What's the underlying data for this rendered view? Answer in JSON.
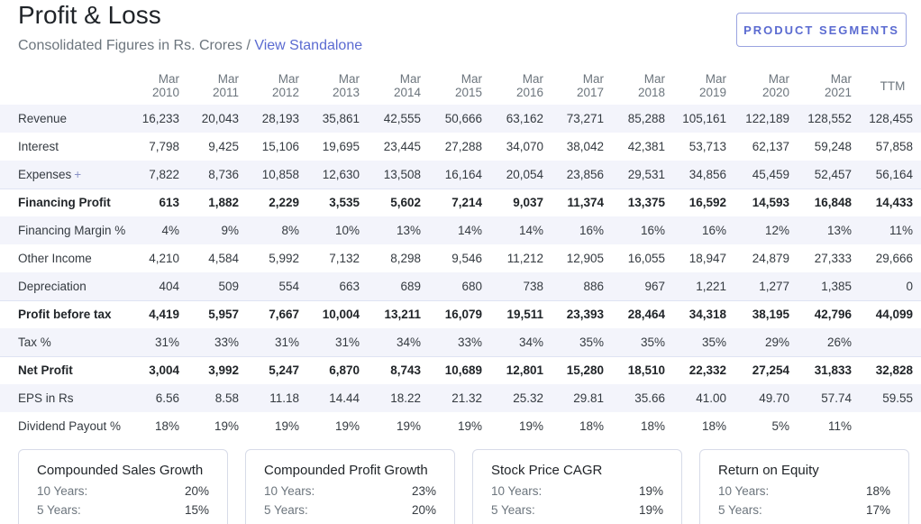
{
  "header": {
    "title": "Profit & Loss",
    "subtitle_prefix": "Consolidated Figures in Rs. Crores / ",
    "subtitle_link": "View Standalone",
    "segments_button": "PRODUCT SEGMENTS"
  },
  "table": {
    "columns": [
      {
        "line1": "Mar",
        "line2": "2010"
      },
      {
        "line1": "Mar",
        "line2": "2011"
      },
      {
        "line1": "Mar",
        "line2": "2012"
      },
      {
        "line1": "Mar",
        "line2": "2013"
      },
      {
        "line1": "Mar",
        "line2": "2014"
      },
      {
        "line1": "Mar",
        "line2": "2015"
      },
      {
        "line1": "Mar",
        "line2": "2016"
      },
      {
        "line1": "Mar",
        "line2": "2017"
      },
      {
        "line1": "Mar",
        "line2": "2018"
      },
      {
        "line1": "Mar",
        "line2": "2019"
      },
      {
        "line1": "Mar",
        "line2": "2020"
      },
      {
        "line1": "Mar",
        "line2": "2021"
      },
      {
        "line1": "TTM",
        "line2": ""
      }
    ],
    "rows": [
      {
        "label": "Revenue",
        "expandable": false,
        "bold": false,
        "values": [
          "16,233",
          "20,043",
          "28,193",
          "35,861",
          "42,555",
          "50,666",
          "63,162",
          "73,271",
          "85,288",
          "105,161",
          "122,189",
          "128,552",
          "128,455"
        ]
      },
      {
        "label": "Interest",
        "expandable": false,
        "bold": false,
        "values": [
          "7,798",
          "9,425",
          "15,106",
          "19,695",
          "23,445",
          "27,288",
          "34,070",
          "38,042",
          "42,381",
          "53,713",
          "62,137",
          "59,248",
          "57,858"
        ]
      },
      {
        "label": "Expenses",
        "expandable": true,
        "bold": false,
        "values": [
          "7,822",
          "8,736",
          "10,858",
          "12,630",
          "13,508",
          "16,164",
          "20,054",
          "23,856",
          "29,531",
          "34,856",
          "45,459",
          "52,457",
          "56,164"
        ]
      },
      {
        "label": "Financing Profit",
        "expandable": false,
        "bold": true,
        "values": [
          "613",
          "1,882",
          "2,229",
          "3,535",
          "5,602",
          "7,214",
          "9,037",
          "11,374",
          "13,375",
          "16,592",
          "14,593",
          "16,848",
          "14,433"
        ]
      },
      {
        "label": "Financing Margin %",
        "expandable": false,
        "bold": false,
        "values": [
          "4%",
          "9%",
          "8%",
          "10%",
          "13%",
          "14%",
          "14%",
          "16%",
          "16%",
          "16%",
          "12%",
          "13%",
          "11%"
        ]
      },
      {
        "label": "Other Income",
        "expandable": false,
        "bold": false,
        "values": [
          "4,210",
          "4,584",
          "5,992",
          "7,132",
          "8,298",
          "9,546",
          "11,212",
          "12,905",
          "16,055",
          "18,947",
          "24,879",
          "27,333",
          "29,666"
        ]
      },
      {
        "label": "Depreciation",
        "expandable": false,
        "bold": false,
        "values": [
          "404",
          "509",
          "554",
          "663",
          "689",
          "680",
          "738",
          "886",
          "967",
          "1,221",
          "1,277",
          "1,385",
          "0"
        ]
      },
      {
        "label": "Profit before tax",
        "expandable": false,
        "bold": true,
        "values": [
          "4,419",
          "5,957",
          "7,667",
          "10,004",
          "13,211",
          "16,079",
          "19,511",
          "23,393",
          "28,464",
          "34,318",
          "38,195",
          "42,796",
          "44,099"
        ]
      },
      {
        "label": "Tax %",
        "expandable": false,
        "bold": false,
        "values": [
          "31%",
          "33%",
          "31%",
          "31%",
          "34%",
          "33%",
          "34%",
          "35%",
          "35%",
          "35%",
          "29%",
          "26%",
          ""
        ]
      },
      {
        "label": "Net Profit",
        "expandable": false,
        "bold": true,
        "values": [
          "3,004",
          "3,992",
          "5,247",
          "6,870",
          "8,743",
          "10,689",
          "12,801",
          "15,280",
          "18,510",
          "22,332",
          "27,254",
          "31,833",
          "32,828"
        ]
      },
      {
        "label": "EPS in Rs",
        "expandable": false,
        "bold": false,
        "values": [
          "6.56",
          "8.58",
          "11.18",
          "14.44",
          "18.22",
          "21.32",
          "25.32",
          "29.81",
          "35.66",
          "41.00",
          "49.70",
          "57.74",
          "59.55"
        ]
      },
      {
        "label": "Dividend Payout %",
        "expandable": false,
        "bold": false,
        "values": [
          "18%",
          "19%",
          "19%",
          "19%",
          "19%",
          "19%",
          "19%",
          "18%",
          "18%",
          "18%",
          "5%",
          "11%",
          ""
        ]
      }
    ]
  },
  "cards": [
    {
      "title": "Compounded Sales Growth",
      "rows": [
        {
          "k": "10 Years:",
          "v": "20%"
        },
        {
          "k": "5 Years:",
          "v": "15%"
        }
      ]
    },
    {
      "title": "Compounded Profit Growth",
      "rows": [
        {
          "k": "10 Years:",
          "v": "23%"
        },
        {
          "k": "5 Years:",
          "v": "20%"
        }
      ]
    },
    {
      "title": "Stock Price CAGR",
      "rows": [
        {
          "k": "10 Years:",
          "v": "19%"
        },
        {
          "k": "5 Years:",
          "v": "19%"
        }
      ]
    },
    {
      "title": "Return on Equity",
      "rows": [
        {
          "k": "10 Years:",
          "v": "18%"
        },
        {
          "k": "5 Years:",
          "v": "17%"
        }
      ]
    }
  ]
}
